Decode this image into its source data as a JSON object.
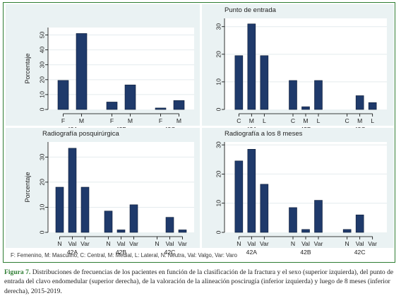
{
  "figure": {
    "footnote": "F: Femenino, M: Masculino, C: Central, M: Medial, L: Lateral, N: Neutra, Val: Valgo, Var: Varo",
    "caption_label": "Figura 7.",
    "caption_text": " Distribuciones de frecuencias de los pacientes en función de la clasificación de la fractura y el sexo (superior izquierda), del punto de entrada del clavo endomedular (superior derecha), de la valoración de la alineación poscirugía (inferior izquierda) y luego de 8 meses (inferior derecha), 2015-2019."
  },
  "colors": {
    "bar": "#1f3a6b",
    "panel_bg": "#eaf2f3",
    "frame": "#2e7d32"
  },
  "chart_data": [
    {
      "type": "bar",
      "title": "",
      "ylabel": "Porcentaje",
      "ylim": [
        0,
        55
      ],
      "yticks": [
        0,
        10,
        20,
        30,
        40,
        50
      ],
      "groups": [
        {
          "label": "42A",
          "bars": [
            {
              "label": "F",
              "value": 19.5
            },
            {
              "label": "M",
              "value": 51
            }
          ]
        },
        {
          "label": "42B",
          "bars": [
            {
              "label": "F",
              "value": 5
            },
            {
              "label": "M",
              "value": 16.5
            }
          ]
        },
        {
          "label": "42C",
          "bars": [
            {
              "label": "F",
              "value": 1
            },
            {
              "label": "M",
              "value": 6
            }
          ]
        }
      ]
    },
    {
      "type": "bar",
      "title": "Punto de entrada",
      "ylabel": "",
      "ylim": [
        0,
        33
      ],
      "yticks": [
        0,
        10,
        20,
        30
      ],
      "groups": [
        {
          "label": "42A",
          "bars": [
            {
              "label": "C",
              "value": 19.5
            },
            {
              "label": "M",
              "value": 31
            },
            {
              "label": "L",
              "value": 19.5
            }
          ]
        },
        {
          "label": "42B",
          "bars": [
            {
              "label": "C",
              "value": 10.5
            },
            {
              "label": "M",
              "value": 1
            },
            {
              "label": "L",
              "value": 10.5
            }
          ]
        },
        {
          "label": "42C",
          "bars": [
            {
              "label": "C",
              "value": 0
            },
            {
              "label": "M",
              "value": 5
            },
            {
              "label": "L",
              "value": 2.5
            }
          ]
        }
      ]
    },
    {
      "type": "bar",
      "title": "Radiografía posquirúrgica",
      "ylabel": "Porcentaje",
      "ylim": [
        0,
        36
      ],
      "yticks": [
        0,
        10,
        20,
        30
      ],
      "groups": [
        {
          "label": "42A",
          "bars": [
            {
              "label": "N",
              "value": 18
            },
            {
              "label": "Val",
              "value": 33.5
            },
            {
              "label": "Var",
              "value": 18
            }
          ]
        },
        {
          "label": "42B",
          "bars": [
            {
              "label": "N",
              "value": 8.5
            },
            {
              "label": "Val",
              "value": 1
            },
            {
              "label": "Var",
              "value": 11
            }
          ]
        },
        {
          "label": "42C",
          "bars": [
            {
              "label": "N",
              "value": 0
            },
            {
              "label": "Val",
              "value": 6
            },
            {
              "label": "Var",
              "value": 1
            }
          ]
        }
      ]
    },
    {
      "type": "bar",
      "title": "Radiografía a los 8 meses",
      "ylabel": "",
      "ylim": [
        0,
        31
      ],
      "yticks": [
        0,
        10,
        20,
        30
      ],
      "groups": [
        {
          "label": "42A",
          "bars": [
            {
              "label": "N",
              "value": 24.5
            },
            {
              "label": "Val",
              "value": 28.5
            },
            {
              "label": "Var",
              "value": 16.5
            }
          ]
        },
        {
          "label": "42B",
          "bars": [
            {
              "label": "N",
              "value": 8.5
            },
            {
              "label": "Val",
              "value": 1
            },
            {
              "label": "Var",
              "value": 11
            }
          ]
        },
        {
          "label": "42C",
          "bars": [
            {
              "label": "N",
              "value": 1
            },
            {
              "label": "Val",
              "value": 6
            },
            {
              "label": "Var",
              "value": 0
            }
          ]
        }
      ]
    }
  ]
}
